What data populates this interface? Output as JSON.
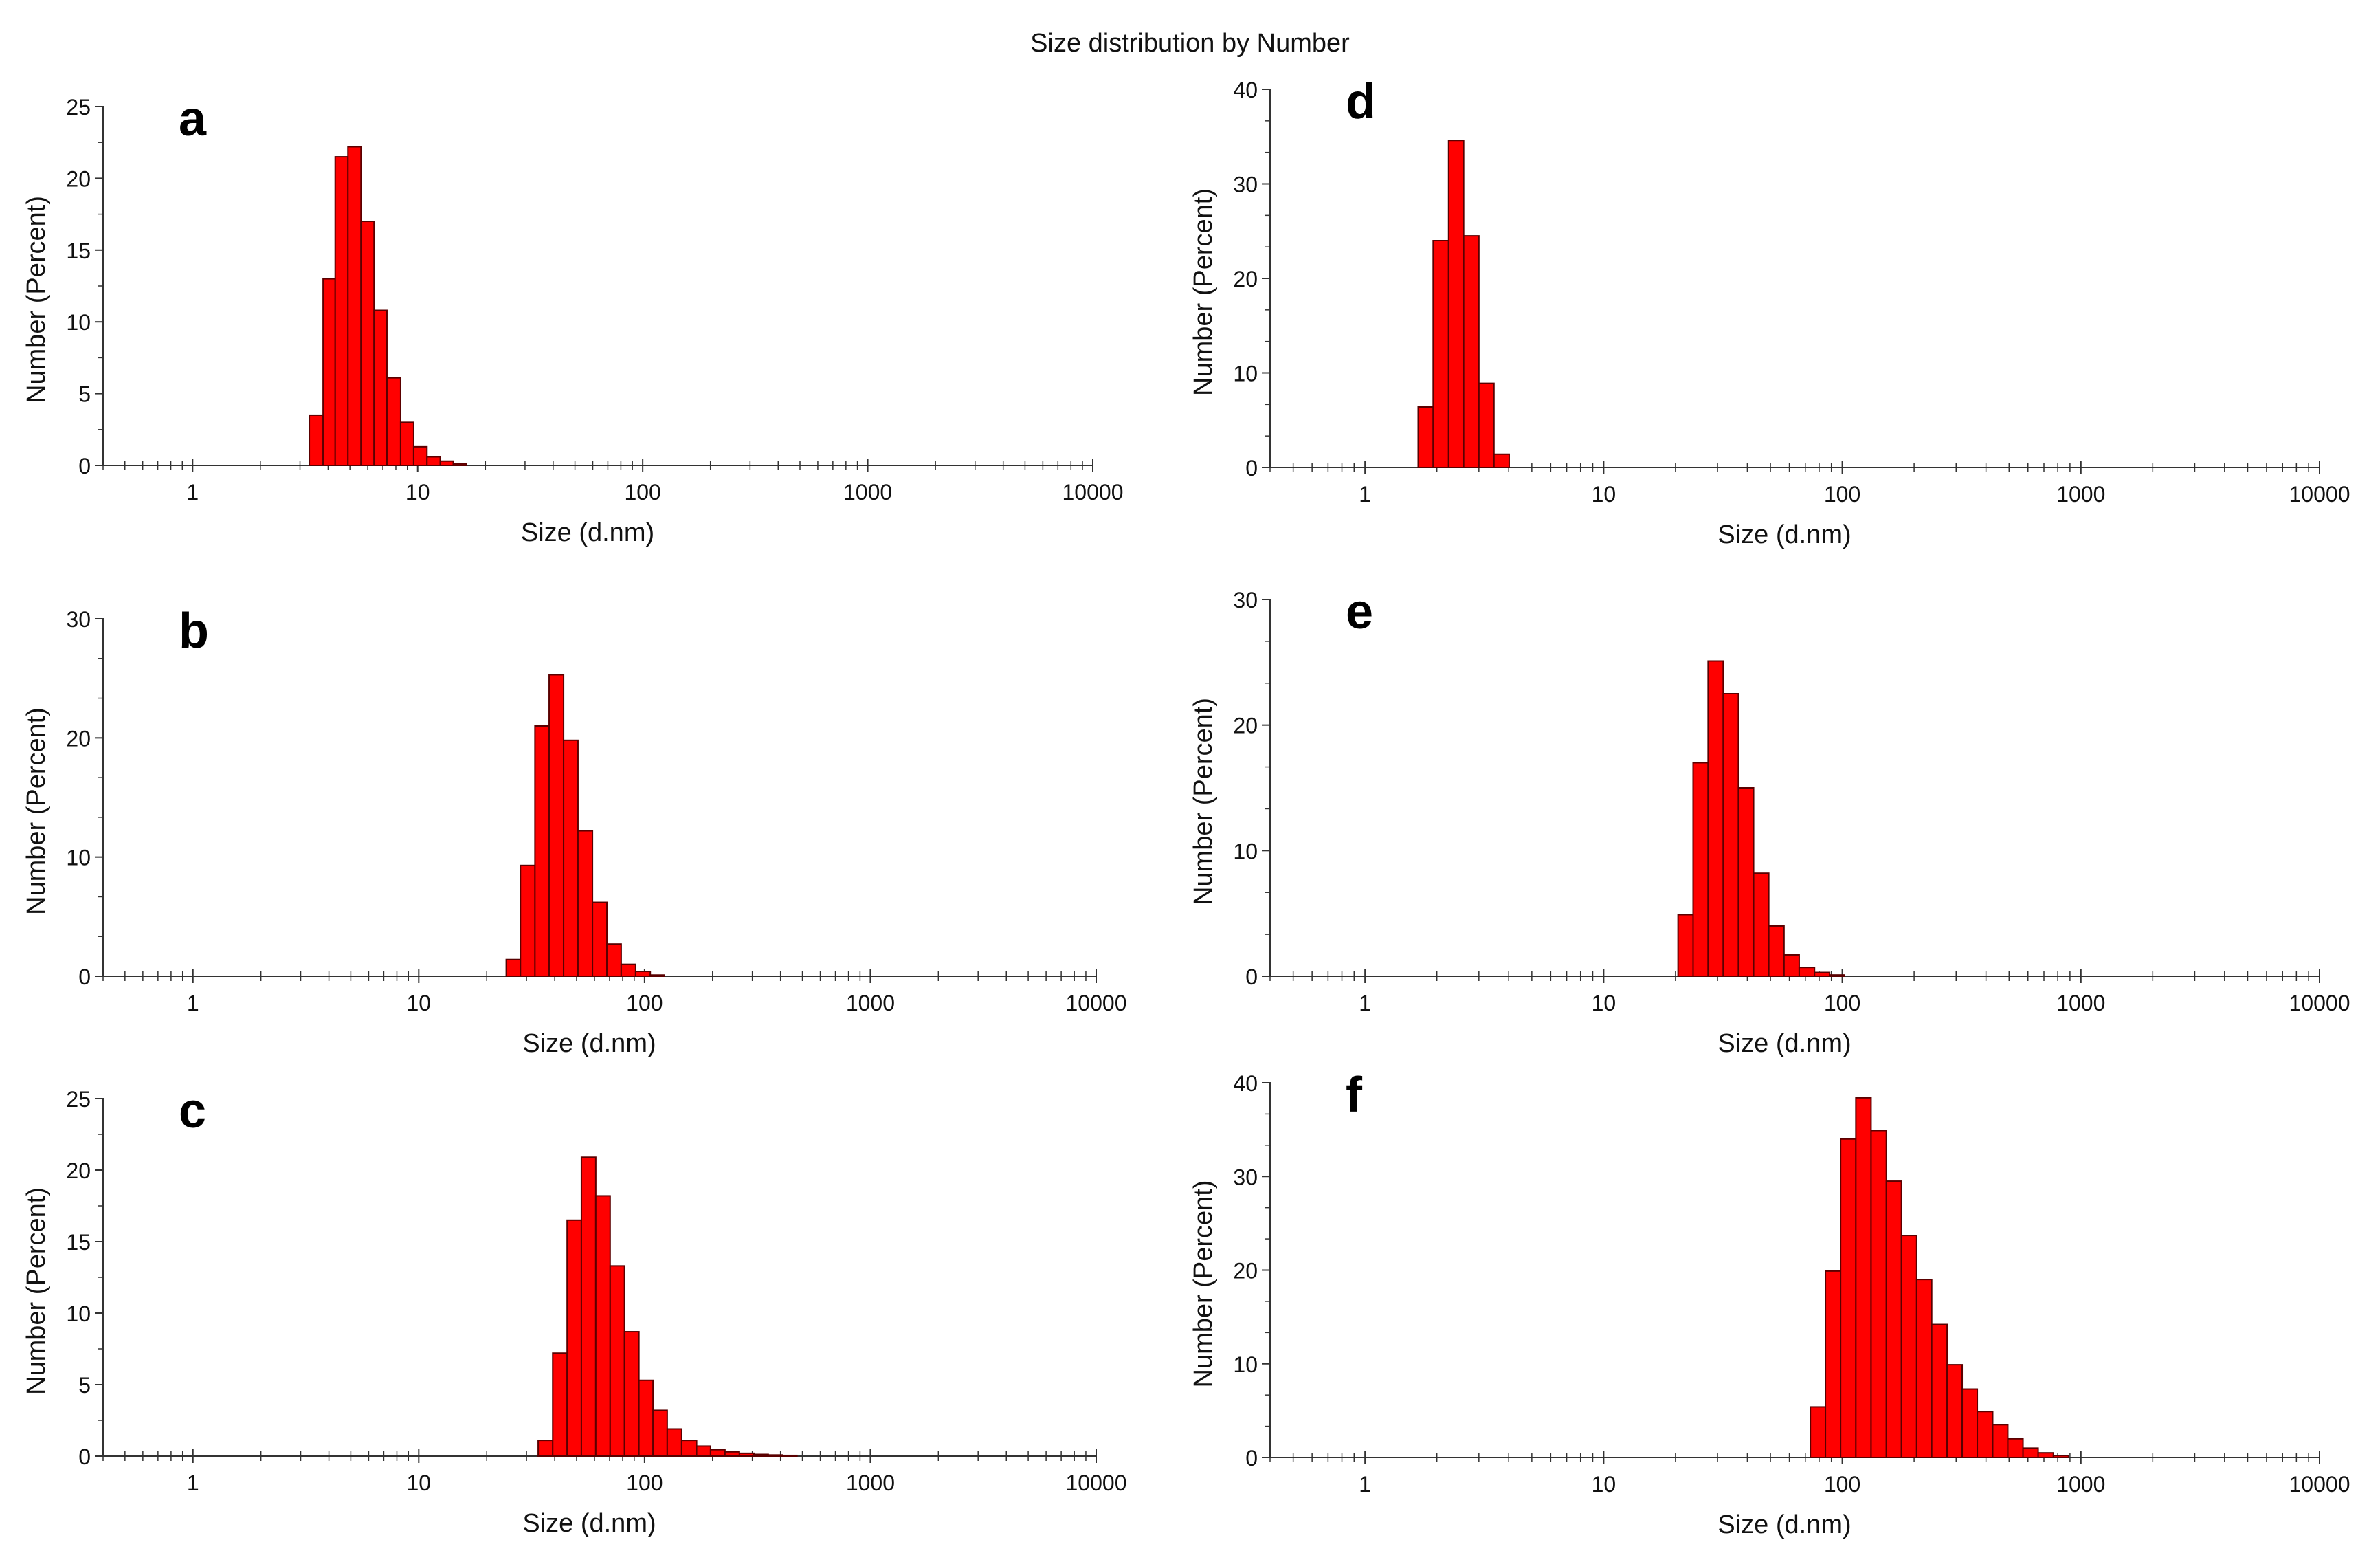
{
  "title": "Size distribution by Number",
  "style": {
    "bar_fill": "#ff0000",
    "bar_stroke": "#5a0000",
    "axis_color": "#333333"
  },
  "chart_data": [
    {
      "panel": "a",
      "type": "bar",
      "xscale": "log",
      "xlabel": "Size (d.nm)",
      "ylabel": "Number (Percent)",
      "xlim": [
        0.4,
        10000
      ],
      "ylim": [
        0,
        25
      ],
      "yticks": [
        0,
        5,
        10,
        15,
        20,
        25
      ],
      "xticks": [
        "1",
        "10",
        "100",
        "1000",
        "10000"
      ],
      "grid": false,
      "bins": [
        {
          "x0": 3.3,
          "x1": 3.8,
          "y": 3.5
        },
        {
          "x0": 3.8,
          "x1": 4.3,
          "y": 13.0
        },
        {
          "x0": 4.3,
          "x1": 4.9,
          "y": 21.5
        },
        {
          "x0": 4.9,
          "x1": 5.6,
          "y": 22.2
        },
        {
          "x0": 5.6,
          "x1": 6.4,
          "y": 17.0
        },
        {
          "x0": 6.4,
          "x1": 7.3,
          "y": 10.8
        },
        {
          "x0": 7.3,
          "x1": 8.4,
          "y": 6.1
        },
        {
          "x0": 8.4,
          "x1": 9.6,
          "y": 3.0
        },
        {
          "x0": 9.6,
          "x1": 11.0,
          "y": 1.3
        },
        {
          "x0": 11.0,
          "x1": 12.6,
          "y": 0.6
        },
        {
          "x0": 12.6,
          "x1": 14.4,
          "y": 0.3
        },
        {
          "x0": 14.4,
          "x1": 16.5,
          "y": 0.1
        }
      ]
    },
    {
      "panel": "b",
      "type": "bar",
      "xscale": "log",
      "xlabel": "Size (d.nm)",
      "ylabel": "Number (Percent)",
      "xlim": [
        0.4,
        10000
      ],
      "ylim": [
        0,
        30
      ],
      "yticks": [
        0,
        10,
        20,
        30
      ],
      "xticks": [
        "1",
        "10",
        "100",
        "1000",
        "10000"
      ],
      "grid": false,
      "bins": [
        {
          "x0": 24.4,
          "x1": 28.2,
          "y": 1.4
        },
        {
          "x0": 28.2,
          "x1": 32.7,
          "y": 9.3
        },
        {
          "x0": 32.7,
          "x1": 37.8,
          "y": 21.0
        },
        {
          "x0": 37.8,
          "x1": 43.8,
          "y": 25.3
        },
        {
          "x0": 43.8,
          "x1": 50.7,
          "y": 19.8
        },
        {
          "x0": 50.7,
          "x1": 58.8,
          "y": 12.2
        },
        {
          "x0": 58.8,
          "x1": 68.1,
          "y": 6.2
        },
        {
          "x0": 68.1,
          "x1": 78.8,
          "y": 2.7
        },
        {
          "x0": 78.8,
          "x1": 91.3,
          "y": 1.0
        },
        {
          "x0": 91.3,
          "x1": 106.0,
          "y": 0.4
        },
        {
          "x0": 106.0,
          "x1": 122.0,
          "y": 0.1
        }
      ]
    },
    {
      "panel": "c",
      "type": "bar",
      "xscale": "log",
      "xlabel": "Size (d.nm)",
      "ylabel": "Number (Percent)",
      "xlim": [
        0.4,
        10000
      ],
      "ylim": [
        0,
        25
      ],
      "yticks": [
        0,
        5,
        10,
        15,
        20,
        25
      ],
      "xticks": [
        "1",
        "10",
        "100",
        "1000",
        "10000"
      ],
      "grid": false,
      "bins": [
        {
          "x0": 33.8,
          "x1": 39.2,
          "y": 1.1
        },
        {
          "x0": 39.2,
          "x1": 45.4,
          "y": 7.2
        },
        {
          "x0": 45.4,
          "x1": 52.5,
          "y": 16.5
        },
        {
          "x0": 52.5,
          "x1": 60.8,
          "y": 20.9
        },
        {
          "x0": 60.8,
          "x1": 70.4,
          "y": 18.2
        },
        {
          "x0": 70.4,
          "x1": 81.5,
          "y": 13.3
        },
        {
          "x0": 81.5,
          "x1": 94.4,
          "y": 8.7
        },
        {
          "x0": 94.4,
          "x1": 109.0,
          "y": 5.3
        },
        {
          "x0": 109.0,
          "x1": 126.0,
          "y": 3.2
        },
        {
          "x0": 126.0,
          "x1": 146.0,
          "y": 1.9
        },
        {
          "x0": 146.0,
          "x1": 170.0,
          "y": 1.1
        },
        {
          "x0": 170.0,
          "x1": 196.0,
          "y": 0.7
        },
        {
          "x0": 196.0,
          "x1": 227.0,
          "y": 0.45
        },
        {
          "x0": 227.0,
          "x1": 263.0,
          "y": 0.3
        },
        {
          "x0": 263.0,
          "x1": 305.0,
          "y": 0.2
        },
        {
          "x0": 305.0,
          "x1": 353.0,
          "y": 0.12
        },
        {
          "x0": 353.0,
          "x1": 409.0,
          "y": 0.08
        },
        {
          "x0": 409.0,
          "x1": 473.0,
          "y": 0.05
        }
      ]
    },
    {
      "panel": "d",
      "type": "bar",
      "xscale": "log",
      "xlabel": "Size (d.nm)",
      "ylabel": "Number (Percent)",
      "xlim": [
        0.4,
        10000
      ],
      "ylim": [
        0,
        40
      ],
      "yticks": [
        0,
        10,
        20,
        30,
        40
      ],
      "xticks": [
        "1",
        "10",
        "100",
        "1000",
        "10000"
      ],
      "grid": false,
      "bins": [
        {
          "x0": 1.67,
          "x1": 1.93,
          "y": 6.4
        },
        {
          "x0": 1.93,
          "x1": 2.24,
          "y": 24.0
        },
        {
          "x0": 2.24,
          "x1": 2.59,
          "y": 34.6
        },
        {
          "x0": 2.59,
          "x1": 3.0,
          "y": 24.5
        },
        {
          "x0": 3.0,
          "x1": 3.47,
          "y": 8.9
        },
        {
          "x0": 3.47,
          "x1": 4.02,
          "y": 1.4
        }
      ]
    },
    {
      "panel": "e",
      "type": "bar",
      "xscale": "log",
      "xlabel": "Size (d.nm)",
      "ylabel": "Number (Percent)",
      "xlim": [
        0.4,
        10000
      ],
      "ylim": [
        0,
        30
      ],
      "yticks": [
        0,
        10,
        20,
        30
      ],
      "xticks": [
        "1",
        "10",
        "100",
        "1000",
        "10000"
      ],
      "grid": false,
      "bins": [
        {
          "x0": 20.5,
          "x1": 23.7,
          "y": 4.9
        },
        {
          "x0": 23.7,
          "x1": 27.4,
          "y": 17.0
        },
        {
          "x0": 27.4,
          "x1": 31.7,
          "y": 25.1
        },
        {
          "x0": 31.7,
          "x1": 36.7,
          "y": 22.5
        },
        {
          "x0": 36.7,
          "x1": 42.5,
          "y": 15.0
        },
        {
          "x0": 42.5,
          "x1": 49.2,
          "y": 8.2
        },
        {
          "x0": 49.2,
          "x1": 57.0,
          "y": 4.0
        },
        {
          "x0": 57.0,
          "x1": 66.0,
          "y": 1.7
        },
        {
          "x0": 66.0,
          "x1": 76.5,
          "y": 0.7
        },
        {
          "x0": 76.5,
          "x1": 88.5,
          "y": 0.3
        },
        {
          "x0": 88.5,
          "x1": 102.0,
          "y": 0.1
        }
      ]
    },
    {
      "panel": "f",
      "type": "bar",
      "xscale": "log",
      "xlabel": "Size (d.nm)",
      "ylabel": "Number (Percent)",
      "xlim": [
        0.4,
        10000
      ],
      "ylim": [
        0,
        40
      ],
      "yticks": [
        0,
        10,
        20,
        30,
        40
      ],
      "xticks": [
        "1",
        "10",
        "100",
        "1000",
        "10000"
      ],
      "grid": false,
      "bins": [
        {
          "x0": 73.5,
          "x1": 85.0,
          "y": 5.4
        },
        {
          "x0": 85.0,
          "x1": 98.4,
          "y": 19.9
        },
        {
          "x0": 98.4,
          "x1": 114.0,
          "y": 34.0
        },
        {
          "x0": 114.0,
          "x1": 132.0,
          "y": 38.4
        },
        {
          "x0": 132.0,
          "x1": 153.0,
          "y": 34.9
        },
        {
          "x0": 153.0,
          "x1": 177.0,
          "y": 29.5
        },
        {
          "x0": 177.0,
          "x1": 205.0,
          "y": 23.7
        },
        {
          "x0": 205.0,
          "x1": 237.0,
          "y": 19.0
        },
        {
          "x0": 237.0,
          "x1": 275.0,
          "y": 14.2
        },
        {
          "x0": 275.0,
          "x1": 318.0,
          "y": 9.9
        },
        {
          "x0": 318.0,
          "x1": 368.0,
          "y": 7.3
        },
        {
          "x0": 368.0,
          "x1": 427.0,
          "y": 4.9
        },
        {
          "x0": 427.0,
          "x1": 494.0,
          "y": 3.5
        },
        {
          "x0": 494.0,
          "x1": 572.0,
          "y": 2.0
        },
        {
          "x0": 572.0,
          "x1": 662.0,
          "y": 1.0
        },
        {
          "x0": 662.0,
          "x1": 767.0,
          "y": 0.5
        },
        {
          "x0": 767.0,
          "x1": 888.0,
          "y": 0.2
        }
      ]
    }
  ]
}
